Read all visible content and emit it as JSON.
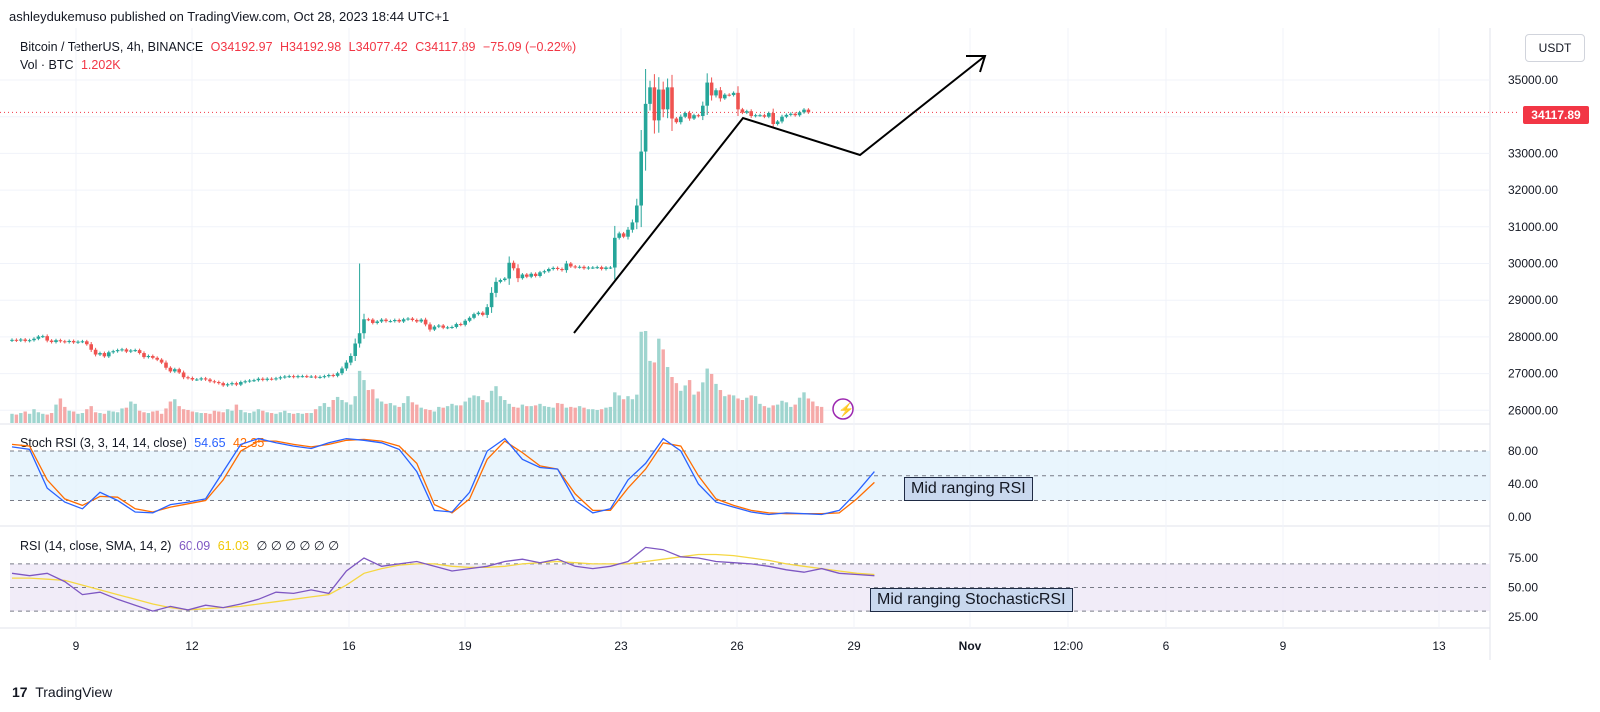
{
  "header": {
    "publisher_line": "ashleydukemuso published on TradingView.com, Oct 28, 2023 18:44 UTC+1"
  },
  "symbol": {
    "name": "Bitcoin / TetherUS, 4h, BINANCE",
    "open": "O34192.97",
    "high": "H34192.98",
    "low": "L34077.42",
    "close": "C34117.89",
    "change": "−75.09 (−0.22%)",
    "vol_label": "Vol · BTC",
    "vol_value": "1.202K"
  },
  "currency_button": "USDT",
  "last_price_tag": "34117.89",
  "stoch_legend": {
    "label": "Stoch RSI (3, 3, 14, 14, close)",
    "k": "54.65",
    "d": "42.35"
  },
  "rsi_legend": {
    "label": "RSI (14, close, SMA, 14, 2)",
    "rsi": "60.09",
    "sma": "61.03",
    "extras": "∅ ∅ ∅ ∅ ∅ ∅"
  },
  "notes": {
    "stoch_note": "Mid ranging RSI",
    "rsi_note": "Mid ranging StochasticRSI"
  },
  "footer": {
    "brand": "TradingView",
    "logo": "17"
  },
  "colors": {
    "up": "#26a69a",
    "down": "#ef5350",
    "vol_up": "#9fd5cf",
    "vol_down": "#f5a9a8",
    "stoch_k": "#2962ff",
    "stoch_d": "#ff6d00",
    "rsi": "#7e57c2",
    "rsi_sma": "#f5d742",
    "annotation": "#000000"
  },
  "chart_data": [
    {
      "type": "candlestick",
      "title": "Bitcoin / TetherUS, 4h, BINANCE",
      "x_ticks": [
        "9",
        "12",
        "16",
        "19",
        "23",
        "26",
        "29",
        "Nov",
        "12:00",
        "6",
        "9",
        "13"
      ],
      "y_ticks": [
        "35000.00",
        "33000.00",
        "32000.00",
        "31000.00",
        "30000.00",
        "29000.00",
        "28000.00",
        "27000.00",
        "26000.00"
      ],
      "ylim": [
        25700,
        35800
      ],
      "last_price": 34117.89,
      "closes": [
        27920,
        27900,
        27930,
        27890,
        27910,
        27950,
        28010,
        28020,
        27900,
        27860,
        27910,
        27880,
        27860,
        27890,
        27850,
        27870,
        27880,
        27800,
        27650,
        27520,
        27560,
        27470,
        27580,
        27610,
        27640,
        27660,
        27600,
        27630,
        27640,
        27560,
        27450,
        27480,
        27430,
        27380,
        27300,
        27160,
        27060,
        27120,
        27030,
        26900,
        26880,
        26840,
        26840,
        26870,
        26840,
        26790,
        26770,
        26740,
        26680,
        26710,
        26740,
        26700,
        26770,
        26790,
        26810,
        26820,
        26860,
        26830,
        26860,
        26850,
        26870,
        26900,
        26920,
        26930,
        26910,
        26930,
        26930,
        26920,
        26920,
        26900,
        26910,
        26930,
        26960,
        26940,
        27010,
        27140,
        27300,
        27480,
        27820,
        28100,
        28480,
        28470,
        28380,
        28420,
        28470,
        28430,
        28430,
        28460,
        28420,
        28480,
        28500,
        28460,
        28420,
        28470,
        28340,
        28200,
        28280,
        28310,
        28250,
        28260,
        28270,
        28350,
        28330,
        28440,
        28520,
        28620,
        28660,
        28600,
        28810,
        29200,
        29500,
        29550,
        29590,
        30020,
        29870,
        29600,
        29700,
        29640,
        29720,
        29660,
        29760,
        29790,
        29850,
        29880,
        29850,
        29820,
        30000,
        29920,
        29900,
        29910,
        29870,
        29890,
        29890,
        29900,
        29850,
        29890,
        29890,
        30700,
        30820,
        30730,
        30920,
        31120,
        31580,
        33050,
        34350,
        34800,
        33900,
        34740,
        34200,
        34800,
        33950,
        33850,
        34000,
        34100,
        33950,
        34040,
        34020,
        34300,
        34930,
        34580,
        34720,
        34500,
        34600,
        34590,
        34650,
        34200,
        34110,
        34150,
        34020,
        34040,
        34040,
        34000,
        34100,
        33800,
        33870,
        34000,
        34050,
        34080,
        34040,
        34120,
        34192,
        34117
      ]
    },
    {
      "type": "bar",
      "title": "Vol · BTC",
      "values": [
        1.2,
        1.1,
        1.3,
        1.5,
        1.2,
        1.8,
        1.4,
        1.2,
        1.1,
        1.3,
        2.4,
        3.2,
        2.1,
        1.6,
        1.5,
        1.2,
        1.3,
        1.8,
        2.2,
        1.4,
        1.3,
        1.2,
        1.6,
        1.5,
        1.4,
        1.9,
        2.0,
        2.8,
        2.5,
        1.6,
        1.4,
        1.3,
        1.5,
        1.6,
        1.2,
        1.9,
        2.8,
        3.1,
        2.2,
        1.8,
        1.7,
        1.5,
        1.4,
        1.3,
        1.3,
        1.2,
        1.6,
        1.5,
        1.4,
        1.8,
        1.6,
        2.4,
        1.7,
        1.4,
        1.3,
        1.5,
        1.8,
        1.6,
        1.4,
        1.3,
        1.2,
        1.4,
        1.6,
        1.3,
        1.2,
        1.3,
        1.2,
        1.3,
        1.3,
        1.8,
        2.2,
        2.6,
        2.1,
        3.0,
        3.4,
        3.0,
        2.7,
        2.4,
        3.5,
        6.8,
        5.6,
        4.3,
        4.4,
        3.2,
        2.8,
        2.5,
        2.6,
        2.3,
        2.1,
        2.6,
        3.5,
        2.7,
        2.4,
        2.0,
        1.8,
        1.7,
        1.5,
        2.1,
        2.0,
        2.2,
        2.5,
        2.3,
        2.3,
        2.8,
        3.3,
        3.6,
        3.5,
        3.0,
        2.7,
        4.2,
        4.8,
        3.5,
        3.0,
        2.5,
        2.1,
        2.0,
        2.4,
        2.2,
        2.2,
        2.3,
        2.5,
        2.2,
        2.1,
        2.0,
        2.6,
        2.5,
        2.0,
        2.1,
        2.0,
        2.2,
        2.0,
        1.8,
        1.8,
        1.7,
        1.8,
        2.0,
        2.1,
        4.0,
        3.6,
        3.1,
        3.5,
        3.1,
        3.7,
        11.9,
        12.0,
        8.1,
        7.9,
        11.0,
        9.6,
        7.3,
        6.0,
        5.2,
        4.2,
        4.9,
        5.6,
        3.7,
        4.1,
        5.3,
        7.1,
        6.4,
        5.1,
        4.3,
        3.5,
        3.7,
        3.6,
        3.2,
        3.0,
        3.3,
        3.6,
        3.5,
        2.5,
        2.2,
        2.0,
        2.3,
        2.4,
        2.9,
        2.7,
        2.1,
        2.4,
        3.3,
        4.0,
        3.2,
        2.8,
        2.2,
        2.1
      ]
    },
    {
      "type": "line",
      "title": "Stoch RSI (3, 3, 14, 14, close)",
      "y_ticks": [
        "80.00",
        "40.00",
        "0.00"
      ],
      "ylim": [
        -6,
        100
      ],
      "series": [
        {
          "name": "k",
          "x": [
            0,
            4,
            8,
            12,
            16,
            20,
            24,
            28,
            32,
            36,
            40,
            44,
            48,
            52,
            56,
            60,
            64,
            68,
            72,
            76,
            80,
            84,
            88,
            92,
            96,
            100,
            104,
            108,
            112,
            116,
            120,
            124,
            128,
            132,
            136,
            140,
            144,
            148,
            152,
            156,
            160,
            164,
            168,
            172,
            176,
            180,
            184,
            188,
            192,
            196
          ],
          "values": [
            85,
            82,
            35,
            18,
            10,
            30,
            20,
            6,
            5,
            15,
            18,
            22,
            55,
            88,
            95,
            90,
            86,
            83,
            90,
            95,
            93,
            90,
            82,
            55,
            8,
            6,
            30,
            80,
            95,
            70,
            60,
            58,
            20,
            5,
            10,
            45,
            65,
            95,
            80,
            40,
            18,
            12,
            6,
            3,
            5,
            4,
            3,
            8,
            30,
            55
          ]
        },
        {
          "name": "d",
          "x": [
            0,
            4,
            8,
            12,
            16,
            20,
            24,
            28,
            32,
            36,
            40,
            44,
            48,
            52,
            56,
            60,
            64,
            68,
            72,
            76,
            80,
            84,
            88,
            92,
            96,
            100,
            104,
            108,
            112,
            116,
            120,
            124,
            128,
            132,
            136,
            140,
            144,
            148,
            152,
            156,
            160,
            164,
            168,
            172,
            176,
            180,
            184,
            188,
            192,
            196
          ],
          "values": [
            88,
            86,
            45,
            22,
            14,
            25,
            24,
            10,
            6,
            12,
            16,
            20,
            45,
            80,
            92,
            92,
            88,
            85,
            88,
            93,
            94,
            92,
            86,
            65,
            15,
            5,
            22,
            70,
            92,
            78,
            62,
            58,
            28,
            8,
            8,
            35,
            58,
            90,
            86,
            50,
            22,
            14,
            8,
            5,
            4,
            4,
            4,
            5,
            22,
            42
          ]
        }
      ]
    },
    {
      "type": "line",
      "title": "RSI (14, close, SMA, 14, 2)",
      "y_ticks": [
        "75.00",
        "50.00",
        "25.00"
      ],
      "ylim": [
        20,
        85
      ],
      "series": [
        {
          "name": "rsi",
          "x": [
            0,
            4,
            8,
            12,
            16,
            20,
            24,
            28,
            32,
            36,
            40,
            44,
            48,
            52,
            56,
            60,
            64,
            68,
            72,
            76,
            80,
            84,
            88,
            92,
            96,
            100,
            104,
            108,
            112,
            116,
            120,
            124,
            128,
            132,
            136,
            140,
            144,
            148,
            152,
            156,
            160,
            164,
            168,
            172,
            176,
            180,
            184,
            188,
            192,
            196
          ],
          "values": [
            62,
            60,
            62,
            55,
            44,
            46,
            40,
            35,
            30,
            34,
            31,
            35,
            33,
            36,
            40,
            46,
            45,
            48,
            45,
            64,
            75,
            68,
            70,
            72,
            68,
            64,
            66,
            68,
            72,
            74,
            71,
            74,
            68,
            66,
            68,
            72,
            84,
            82,
            76,
            75,
            72,
            71,
            70,
            68,
            65,
            63,
            66,
            62,
            61,
            60
          ]
        },
        {
          "name": "sma",
          "x": [
            0,
            4,
            8,
            12,
            16,
            20,
            24,
            28,
            32,
            36,
            40,
            44,
            48,
            52,
            56,
            60,
            64,
            68,
            72,
            76,
            80,
            84,
            88,
            92,
            96,
            100,
            104,
            108,
            112,
            116,
            120,
            124,
            128,
            132,
            136,
            140,
            144,
            148,
            152,
            156,
            160,
            164,
            168,
            172,
            176,
            180,
            184,
            188,
            192,
            196
          ],
          "values": [
            58,
            58,
            57,
            56,
            52,
            48,
            44,
            40,
            36,
            33,
            31,
            32,
            33,
            34,
            36,
            38,
            40,
            42,
            44,
            52,
            62,
            66,
            69,
            70,
            70,
            68,
            67,
            67,
            68,
            70,
            71,
            72,
            71,
            70,
            70,
            70,
            72,
            74,
            76,
            78,
            78,
            77,
            75,
            73,
            70,
            68,
            66,
            64,
            62,
            61
          ]
        }
      ]
    }
  ]
}
